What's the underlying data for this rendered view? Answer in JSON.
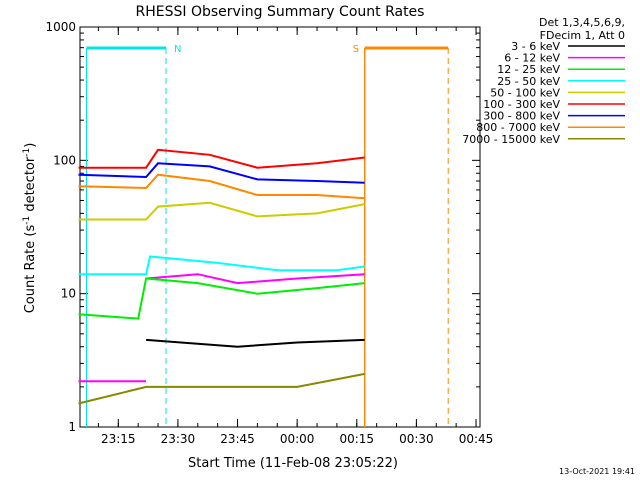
{
  "chart_data": {
    "type": "line",
    "title": "RHESSI Observing Summary Count Rates",
    "xlabel": "Start Time (11-Feb-08 23:05:22)",
    "ylabel": "Count Rate (s⁻¹ detector⁻¹)",
    "ylabel_main": "Count Rate (s",
    "ylabel_sup1": "-1",
    "ylabel_mid": " detector",
    "ylabel_sup2": "-1",
    "ylabel_end": ")",
    "y_scale": "log",
    "ylim": [
      1,
      1000
    ],
    "xlim": [
      "23:05:22",
      "00:46:00"
    ],
    "x_ticks": [
      "23:15",
      "23:30",
      "23:45",
      "00:00",
      "00:15",
      "00:30",
      "00:45"
    ],
    "y_ticks": [
      "1",
      "10",
      "100",
      "1000"
    ],
    "legend_header": [
      "Det 1,3,4,5,6,9,",
      "FDecim 1, Att 0"
    ],
    "legend_placement": "right",
    "timestamp": "13-Oct-2021 19:41",
    "markers": [
      {
        "label": "N",
        "time": "23:07:00 - 23:27:00",
        "kind": "night",
        "color": "#00e6e6"
      },
      {
        "label": "S",
        "time": "00:17:00 - 00:38:00",
        "kind": "saa",
        "color": "#ff8800"
      }
    ],
    "series": [
      {
        "name": "3 - 6 keV",
        "color": "#000000",
        "segments": [
          {
            "t": [
              "23:22",
              "23:45",
              "00:00",
              "00:17"
            ],
            "y": [
              4.5,
              4.0,
              4.3,
              4.5
            ]
          }
        ]
      },
      {
        "name": "6 - 12 keV",
        "color": "#ff00ff",
        "segments": [
          {
            "t": [
              "23:05",
              "23:22"
            ],
            "y": [
              2.2,
              2.2
            ]
          },
          {
            "t": [
              "23:22",
              "23:35",
              "23:45",
              "00:00",
              "00:17"
            ],
            "y": [
              13,
              14,
              12,
              13,
              14
            ]
          }
        ]
      },
      {
        "name": "12 - 25 keV",
        "color": "#00ee00",
        "segments": [
          {
            "t": [
              "23:05",
              "23:20",
              "23:22",
              "23:35",
              "23:50",
              "00:05",
              "00:17"
            ],
            "y": [
              7,
              6.5,
              13,
              12,
              10,
              11,
              12
            ]
          }
        ]
      },
      {
        "name": "25 - 50 keV",
        "color": "#00ffff",
        "segments": [
          {
            "t": [
              "23:05",
              "23:22",
              "23:23",
              "23:40",
              "23:55",
              "00:10",
              "00:17"
            ],
            "y": [
              14,
              14,
              19,
              17,
              15,
              15,
              16
            ]
          }
        ]
      },
      {
        "name": "50 - 100 keV",
        "color": "#cccc00",
        "segments": [
          {
            "t": [
              "23:05",
              "23:22",
              "23:25",
              "23:38",
              "23:50",
              "00:05",
              "00:17"
            ],
            "y": [
              36,
              36,
              45,
              48,
              38,
              40,
              47
            ]
          }
        ]
      },
      {
        "name": "100 - 300 keV",
        "color": "#ff0000",
        "segments": [
          {
            "t": [
              "23:05",
              "23:22",
              "23:25",
              "23:38",
              "23:50",
              "00:05",
              "00:17"
            ],
            "y": [
              88,
              88,
              120,
              110,
              88,
              95,
              105
            ]
          }
        ]
      },
      {
        "name": "300 - 800 keV",
        "color": "#0000ff",
        "segments": [
          {
            "t": [
              "23:05",
              "23:22",
              "23:25",
              "23:38",
              "23:50",
              "00:05",
              "00:17"
            ],
            "y": [
              78,
              75,
              95,
              90,
              72,
              70,
              68
            ]
          }
        ]
      },
      {
        "name": "800 - 7000 keV",
        "color": "#ff8800",
        "segments": [
          {
            "t": [
              "23:05",
              "23:22",
              "23:25",
              "23:38",
              "23:50",
              "00:05",
              "00:17"
            ],
            "y": [
              64,
              62,
              78,
              70,
              55,
              55,
              52
            ]
          }
        ]
      },
      {
        "name": "7000 - 15000 keV",
        "color": "#888800",
        "segments": [
          {
            "t": [
              "23:05",
              "23:22",
              "23:45",
              "00:00",
              "00:17"
            ],
            "y": [
              1.5,
              2.0,
              2.0,
              2.0,
              2.5
            ]
          }
        ]
      }
    ]
  }
}
